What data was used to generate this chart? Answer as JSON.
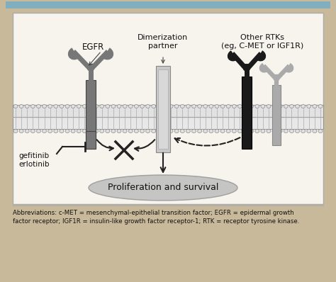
{
  "bg_outer": "#c9b99b",
  "bg_inner": "#f7f3ed",
  "bg_top_bar": "#82afc0",
  "text_color": "#111111",
  "membrane_fill": "#e5e5e5",
  "membrane_edge": "#999999",
  "egfr_color": "#777777",
  "dim_partner_color": "#c0c0c0",
  "rtk1_color": "#2a2a2a",
  "rtk2_color": "#aaaaaa",
  "arrow_color": "#222222",
  "ellipse_fill": "#bbbbbb",
  "ellipse_edge": "#888888",
  "abbrev_text1": "Abbreviations: c-MET = mesenchymal-epithelial transition factor; EGFR = epidermal growth",
  "abbrev_text2": "factor receptor; IGF1R = insulin-like growth factor receptor-1; RTK = receptor tyrosine kinase.",
  "egfr_label": "EGFR",
  "dimerization_label": "Dimerization\npartner",
  "other_rtks_label": "Other RTKs\n(eg, C-MET or IGF1R)",
  "drug_label": "gefitinib\nerlotinib",
  "proliferation_label": "Proliferation and survival",
  "figw": 4.74,
  "figh": 3.98,
  "dpi": 100
}
